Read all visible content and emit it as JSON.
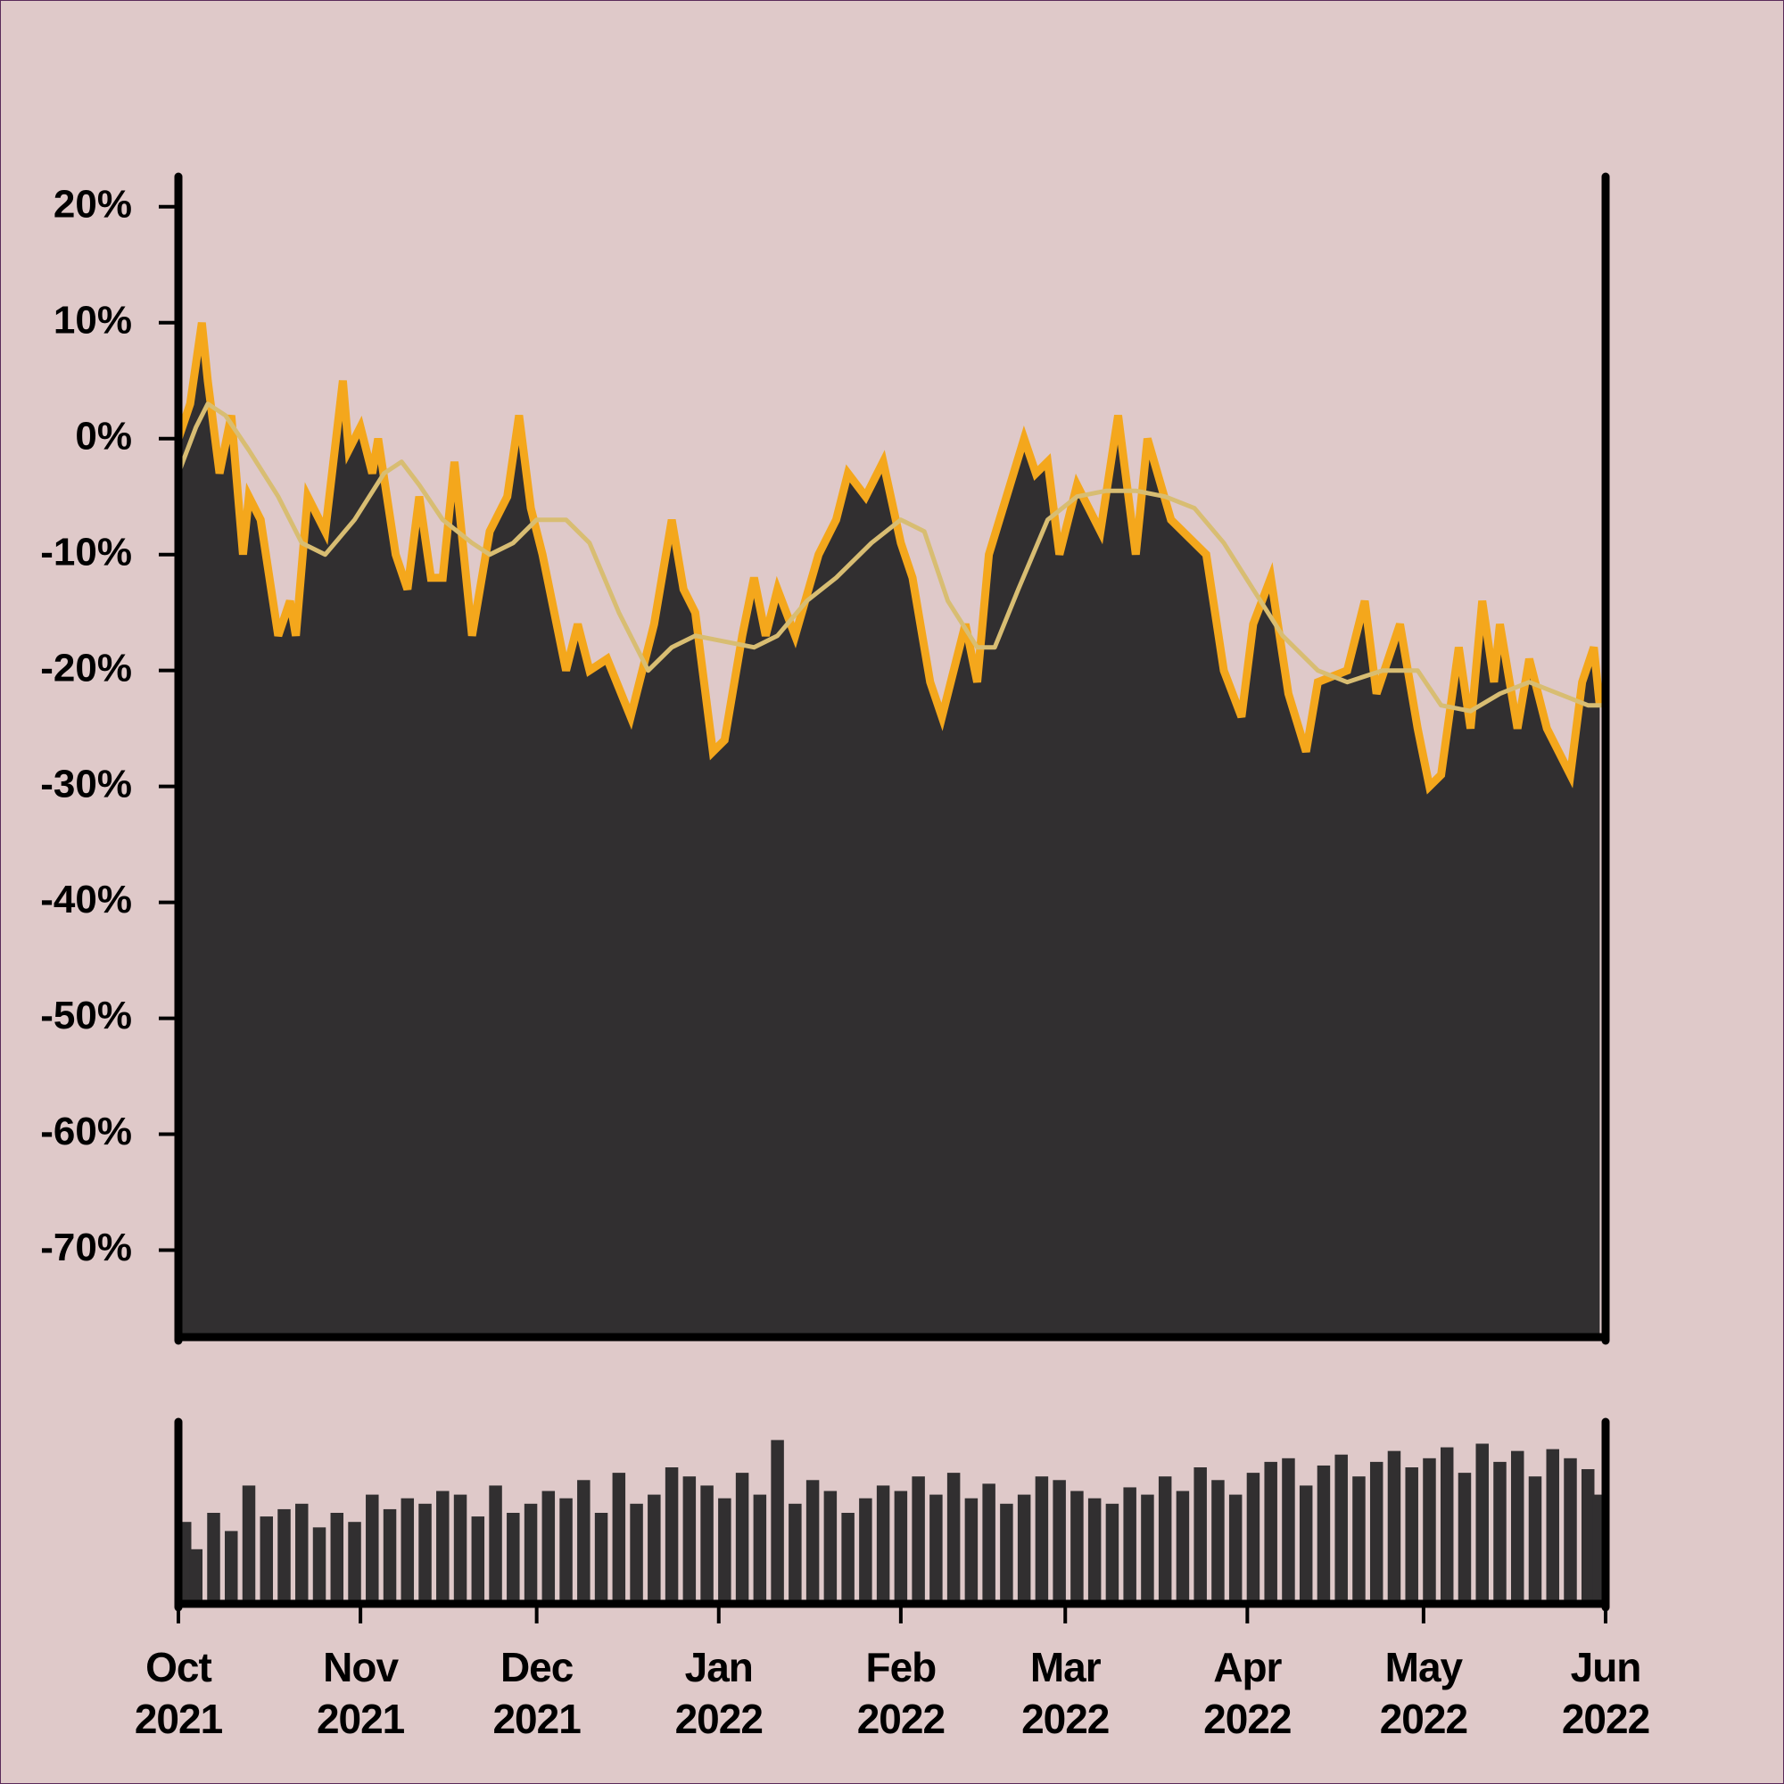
{
  "chart_data": [
    {
      "type": "area",
      "xlim": [
        0,
        243
      ],
      "ylim": [
        -77.5,
        22.6
      ],
      "yticks": [
        {
          "value": 20,
          "label": "20%"
        },
        {
          "value": 10,
          "label": "10%"
        },
        {
          "value": 0,
          "label": "0%"
        },
        {
          "value": -10,
          "label": "-10%"
        },
        {
          "value": -20,
          "label": "-20%"
        },
        {
          "value": -30,
          "label": "-30%"
        },
        {
          "value": -40,
          "label": "-40%"
        },
        {
          "value": -50,
          "label": "-50%"
        },
        {
          "value": -60,
          "label": "-60%"
        },
        {
          "value": -70,
          "label": "-70%"
        }
      ],
      "series": [
        {
          "type": "area",
          "color": "#f4a71c",
          "fill": "#312f30",
          "x": [
            0,
            2,
            4,
            5,
            7,
            9,
            11,
            12,
            14,
            17,
            19,
            20,
            22,
            25,
            28,
            29,
            31,
            33,
            34,
            37,
            39,
            41,
            43,
            45,
            47,
            50,
            53,
            56,
            58,
            60,
            62,
            66,
            68,
            70,
            73,
            77,
            81,
            84,
            86,
            88,
            91,
            93,
            96,
            98,
            100,
            102,
            105,
            109,
            112,
            114,
            117,
            120,
            123,
            125,
            128,
            130,
            134,
            136,
            138,
            141,
            144,
            146,
            148,
            150,
            153,
            157,
            160,
            163,
            165,
            169,
            175,
            178,
            181,
            183,
            186,
            189,
            192,
            194,
            199,
            202,
            204,
            208,
            211,
            213,
            215,
            218,
            220,
            222,
            224,
            225,
            228,
            230,
            233,
            237,
            239,
            241,
            242
          ],
          "values": [
            0,
            3,
            10,
            5,
            -3,
            2,
            -10,
            -5,
            -7,
            -17,
            -14,
            -17,
            -5,
            -8,
            5,
            -1,
            1,
            -3,
            0,
            -10,
            -13,
            -5,
            -12,
            -12,
            -2,
            -17,
            -8,
            -5,
            2,
            -6,
            -10,
            -20,
            -16,
            -20,
            -19,
            -24,
            -16,
            -7,
            -13,
            -15,
            -27,
            -26,
            -17,
            -12,
            -17,
            -13,
            -17,
            -10,
            -7,
            -3,
            -5,
            -2,
            -9,
            -12,
            -21,
            -24,
            -16,
            -21,
            -10,
            -5,
            0,
            -3,
            -2,
            -10,
            -4,
            -8,
            2,
            -10,
            0,
            -7,
            -10,
            -20,
            -24,
            -16,
            -12,
            -22,
            -27,
            -21,
            -20,
            -14,
            -22,
            -16,
            -25,
            -30,
            -29,
            -18,
            -25,
            -14,
            -21,
            -16,
            -25,
            -19,
            -25,
            -29,
            -21,
            -18,
            -23
          ]
        },
        {
          "type": "line",
          "color": "#d8bd72",
          "x": [
            0,
            3,
            5,
            8,
            12,
            17,
            21,
            25,
            30,
            35,
            38,
            41,
            45,
            50,
            53,
            57,
            61,
            66,
            70,
            75,
            80,
            84,
            88,
            93,
            98,
            102,
            107,
            112,
            118,
            123,
            127,
            131,
            136,
            139,
            143,
            148,
            153,
            158,
            163,
            168,
            173,
            178,
            183,
            188,
            194,
            199,
            205,
            211,
            215,
            220,
            225,
            230,
            235,
            240,
            243
          ],
          "values": [
            -3,
            1,
            3,
            2,
            -1,
            -5,
            -9,
            -10,
            -7,
            -3,
            -2,
            -4,
            -7,
            -9,
            -10,
            -9,
            -7,
            -7,
            -9,
            -15,
            -20,
            -18,
            -17,
            -17.5,
            -18,
            -17,
            -14,
            -12,
            -9,
            -7,
            -8,
            -14,
            -18,
            -18,
            -13,
            -7,
            -5,
            -4.5,
            -4.5,
            -5,
            -6,
            -9,
            -13,
            -17,
            -20,
            -21,
            -20,
            -20,
            -23,
            -23.5,
            -22,
            -21,
            -22,
            -23,
            -23
          ]
        }
      ]
    },
    {
      "type": "bar",
      "color": "#312f30",
      "xlim": [
        0,
        243
      ],
      "ylim": [
        0,
        100
      ],
      "xticks": [
        {
          "value": 0,
          "label": "Oct\n2021"
        },
        {
          "value": 31,
          "label": "Nov\n2021"
        },
        {
          "value": 61,
          "label": "Dec\n2021"
        },
        {
          "value": 92,
          "label": "Jan\n2022"
        },
        {
          "value": 123,
          "label": "Feb\n2022"
        },
        {
          "value": 151,
          "label": "Mar\n2022"
        },
        {
          "value": 182,
          "label": "Apr\n2022"
        },
        {
          "value": 212,
          "label": "May\n2022"
        },
        {
          "value": 243,
          "label": "Jun\n2022"
        }
      ],
      "x": [
        0,
        3,
        6,
        9,
        12,
        15,
        18,
        21,
        24,
        27,
        30,
        33,
        36,
        39,
        42,
        45,
        48,
        51,
        54,
        57,
        60,
        63,
        66,
        69,
        72,
        75,
        78,
        81,
        84,
        87,
        90,
        93,
        96,
        99,
        102,
        105,
        108,
        111,
        114,
        117,
        120,
        123,
        126,
        129,
        132,
        135,
        138,
        141,
        144,
        147,
        150,
        153,
        156,
        159,
        162,
        165,
        168,
        171,
        174,
        177,
        180,
        183,
        186,
        189,
        192,
        195,
        198,
        201,
        204,
        207,
        210,
        213,
        216,
        219,
        222,
        225,
        228,
        231,
        234,
        237,
        240,
        243
      ],
      "values": [
        45,
        30,
        50,
        40,
        65,
        48,
        52,
        55,
        42,
        50,
        45,
        60,
        52,
        58,
        55,
        62,
        60,
        48,
        65,
        50,
        55,
        62,
        58,
        68,
        50,
        72,
        55,
        60,
        75,
        70,
        65,
        58,
        72,
        60,
        90,
        55,
        68,
        62,
        50,
        58,
        65,
        62,
        70,
        60,
        72,
        58,
        66,
        55,
        60,
        70,
        68,
        62,
        58,
        55,
        64,
        60,
        70,
        62,
        75,
        68,
        60,
        72,
        78,
        80,
        65,
        76,
        82,
        70,
        78,
        84,
        75,
        80,
        86,
        72,
        88,
        78,
        84,
        70,
        85,
        80,
        74,
        60
      ]
    }
  ]
}
